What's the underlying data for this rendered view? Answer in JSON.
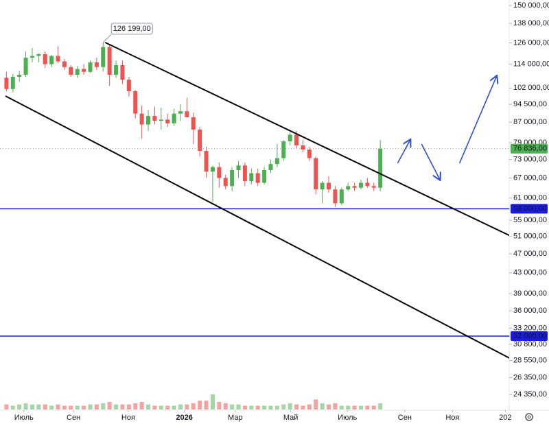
{
  "chart_data": {
    "type": "candlestick",
    "log_scale": true,
    "grid": false,
    "up_color": "#4caf50",
    "down_color": "#ef5350",
    "volume_up_color": "#a5d6a7",
    "volume_down_color": "#f5a3a1",
    "x": [
      0,
      1,
      2,
      3,
      4,
      5,
      6,
      7,
      8,
      9,
      10,
      11,
      12,
      13,
      14,
      15,
      16,
      17,
      18,
      19,
      20,
      21,
      22,
      23,
      24,
      25,
      26,
      27,
      28,
      29,
      30,
      31,
      32,
      33,
      34,
      35,
      36,
      37,
      38,
      39,
      40,
      41,
      42,
      43,
      44,
      45,
      46,
      47,
      48,
      49,
      50,
      51,
      52,
      53,
      54,
      55,
      56,
      57,
      58
    ],
    "open": [
      107000,
      101500,
      107500,
      108500,
      117500,
      118500,
      119500,
      114000,
      118500,
      115500,
      112500,
      108500,
      111500,
      110000,
      115000,
      112500,
      123500,
      108500,
      113500,
      106000,
      100500,
      90500,
      86000,
      89500,
      87500,
      88000,
      86500,
      90500,
      91500,
      89000,
      84000,
      76000,
      69000,
      70500,
      67000,
      64500,
      69500,
      71000,
      66000,
      68500,
      65500,
      69500,
      71500,
      73500,
      79500,
      82000,
      78000,
      76500,
      73500,
      63500,
      65500,
      63500,
      59500,
      63500,
      64500,
      64000,
      65500,
      64500,
      64000
    ],
    "high": [
      110000,
      109000,
      110500,
      121000,
      123000,
      120000,
      121000,
      119000,
      124000,
      117000,
      113500,
      113000,
      114000,
      116000,
      117500,
      126199,
      125000,
      116000,
      116000,
      107500,
      101000,
      94000,
      92000,
      93500,
      93000,
      90500,
      92500,
      94500,
      97500,
      91000,
      85000,
      77500,
      71000,
      72000,
      68000,
      70500,
      72500,
      72000,
      70000,
      70000,
      70500,
      73000,
      78500,
      80000,
      83000,
      83500,
      80000,
      77500,
      74000,
      66000,
      67500,
      64500,
      64000,
      65500,
      65500,
      66500,
      67000,
      65500,
      80000
    ],
    "low": [
      100500,
      100000,
      105000,
      107500,
      115000,
      115000,
      112000,
      112500,
      114500,
      111000,
      107500,
      107000,
      108500,
      109500,
      111000,
      110000,
      103000,
      107000,
      104000,
      98000,
      88500,
      80500,
      83500,
      86000,
      84000,
      85000,
      85500,
      87500,
      89000,
      78500,
      74000,
      67000,
      60000,
      64000,
      63500,
      63000,
      67000,
      64500,
      65000,
      64500,
      65000,
      68500,
      70500,
      72500,
      78000,
      77000,
      75500,
      72500,
      62000,
      59500,
      62500,
      58500,
      59000,
      63000,
      63000,
      63500,
      64000,
      63000,
      63000
    ],
    "close": [
      101500,
      107500,
      108500,
      117500,
      118500,
      119500,
      114000,
      118500,
      115500,
      112500,
      108500,
      111500,
      110000,
      115000,
      112500,
      123500,
      108500,
      113500,
      106000,
      100500,
      90500,
      86000,
      89500,
      87500,
      88000,
      86500,
      90500,
      91500,
      89000,
      84000,
      76000,
      69000,
      70500,
      67000,
      64500,
      69500,
      71000,
      66000,
      68500,
      65500,
      69500,
      71500,
      73500,
      79500,
      82000,
      78000,
      76500,
      73500,
      63500,
      65500,
      63500,
      59500,
      63500,
      64500,
      64000,
      65500,
      64500,
      64000,
      76836
    ],
    "volume": [
      4,
      3,
      4,
      5,
      4,
      4,
      4,
      3,
      4,
      3,
      3,
      3,
      3,
      4,
      4,
      5,
      6,
      4,
      4,
      4,
      5,
      6,
      4,
      3,
      3,
      3,
      3,
      4,
      4,
      5,
      7,
      7,
      12,
      6,
      5,
      4,
      4,
      3,
      3,
      3,
      3,
      3,
      3,
      4,
      5,
      4,
      3,
      4,
      8,
      5,
      4,
      5,
      3,
      3,
      3,
      3,
      3,
      3,
      5
    ],
    "xlim": [
      -1,
      78
    ],
    "xticks": [
      {
        "value": 2.7,
        "label": "Июль"
      },
      {
        "value": 10.4,
        "label": "Сен"
      },
      {
        "value": 18.9,
        "label": "Ноя"
      },
      {
        "value": 27.6,
        "label": "2026"
      },
      {
        "value": 35.5,
        "label": "Мар"
      },
      {
        "value": 44.1,
        "label": "Май"
      },
      {
        "value": 52.9,
        "label": "Июль"
      },
      {
        "value": 61.8,
        "label": "Сен"
      },
      {
        "value": 69.2,
        "label": "Ноя"
      },
      {
        "value": 77.4,
        "label": "202"
      }
    ],
    "ylim": [
      22850,
      153900
    ],
    "yticks": [
      {
        "value": 150000,
        "label": "150 000,00"
      },
      {
        "value": 138000,
        "label": "138 000,00"
      },
      {
        "value": 126000,
        "label": "126 000,00"
      },
      {
        "value": 114000,
        "label": "114 000,00"
      },
      {
        "value": 102000,
        "label": "102 000,00"
      },
      {
        "value": 94500,
        "label": "94 500,00"
      },
      {
        "value": 87000,
        "label": "87 000,00"
      },
      {
        "value": 79000,
        "label": "79 000,00"
      },
      {
        "value": 73000,
        "label": "73 000,00"
      },
      {
        "value": 67000,
        "label": "67 000,00"
      },
      {
        "value": 61000,
        "label": "61 000,00"
      },
      {
        "value": 55000,
        "label": "55 000,00"
      },
      {
        "value": 51000,
        "label": "51 000,00"
      },
      {
        "value": 47000,
        "label": "47 000,00"
      },
      {
        "value": 43000,
        "label": "43 000,00"
      },
      {
        "value": 39000,
        "label": "39 000,00"
      },
      {
        "value": 36000,
        "label": "36 000,00"
      },
      {
        "value": 33200,
        "label": "33 200,00"
      },
      {
        "value": 30800,
        "label": "30 800,00"
      },
      {
        "value": 28550,
        "label": "28 550,00"
      },
      {
        "value": 26350,
        "label": "26 350,00"
      },
      {
        "value": 24350,
        "label": "24 350,00"
      }
    ],
    "last_price": {
      "value": 76836,
      "label": "76 836,00",
      "color": "#4caf50"
    },
    "levels": [
      {
        "value": 58000,
        "label": "58 000,00",
        "color": "#1a1ae6"
      },
      {
        "value": 32000,
        "label": "32 000,00",
        "color": "#1a1ae6"
      }
    ],
    "trend_lines": [
      {
        "x": [
          15.3,
          78
        ],
        "y": [
          126199,
          51240
        ],
        "color": "#000000"
      },
      {
        "x": [
          -0.15,
          78
        ],
        "y": [
          98250,
          28890
        ],
        "color": "#000000"
      }
    ],
    "forecast": {
      "color": "#2b4fd8",
      "arrows": [
        {
          "x": [
            60.7,
            62.7
          ],
          "y": [
            71810,
            80300
          ]
        },
        {
          "x": [
            64.4,
            67.3
          ],
          "y": [
            78500,
            66250
          ]
        },
        {
          "x": [
            70.3,
            76.1
          ],
          "y": [
            71810,
            108200
          ]
        }
      ]
    },
    "annotation": {
      "x": 15,
      "value": 126199,
      "label": "126 199,00"
    }
  }
}
